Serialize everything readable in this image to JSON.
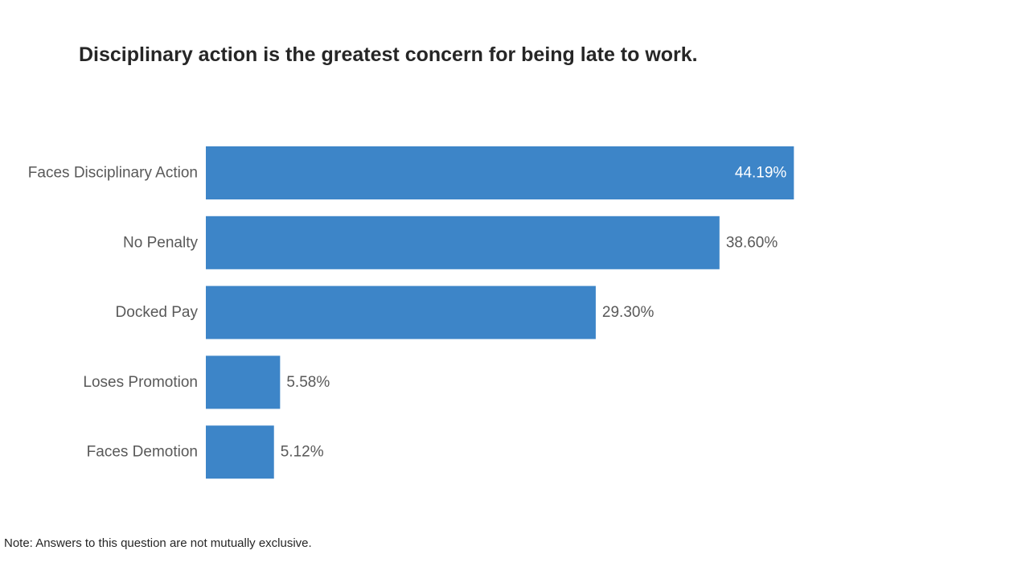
{
  "chart_data": {
    "type": "bar",
    "orientation": "horizontal",
    "title": "Disciplinary action is the greatest concern for being late to work.",
    "categories": [
      "Faces Disciplinary Action",
      "No Penalty",
      "Docked Pay",
      "Loses Promotion",
      "Faces Demotion"
    ],
    "values": [
      44.19,
      38.6,
      29.3,
      5.58,
      5.12
    ],
    "value_labels": [
      "44.19%",
      "38.60%",
      "29.30%",
      "5.58%",
      "5.12%"
    ],
    "xlim": [
      0,
      60
    ],
    "grid": false,
    "bar_color": "#3d85c8",
    "note": "Note: Answers to this question are not mutually exclusive."
  }
}
